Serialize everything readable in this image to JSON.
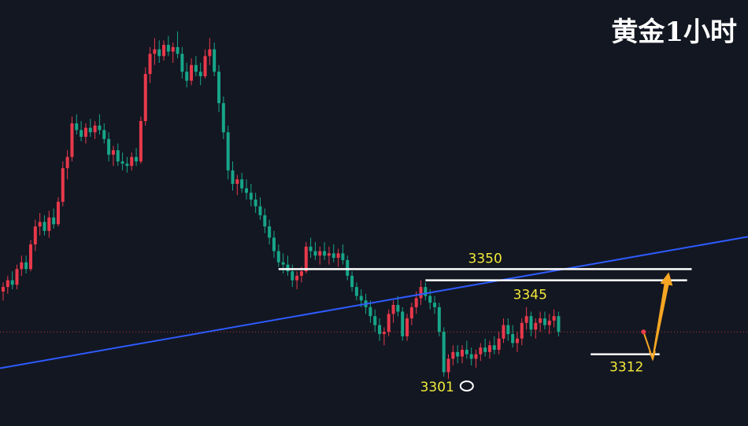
{
  "chart_data": {
    "type": "candlestick",
    "title": "黄金1小时",
    "instrument": "黄金",
    "timeframe": "1小时",
    "xlabel": "",
    "ylabel": "",
    "ylim": [
      3280,
      3470
    ],
    "grid": false,
    "colors": {
      "background": "#131722",
      "up": "#e8394b",
      "down": "#17a589",
      "trendline": "#2e5bff",
      "level_line": "#ffffff",
      "label": "#f2ea3a",
      "projection": "#f5a623",
      "current_price_line": "#c0392b"
    },
    "current_price": 3322,
    "candles": [
      {
        "o": 3340,
        "h": 3344,
        "l": 3336,
        "c": 3342
      },
      {
        "o": 3342,
        "h": 3347,
        "l": 3339,
        "c": 3345
      },
      {
        "o": 3345,
        "h": 3349,
        "l": 3341,
        "c": 3343
      },
      {
        "o": 3343,
        "h": 3352,
        "l": 3341,
        "c": 3350
      },
      {
        "o": 3350,
        "h": 3356,
        "l": 3347,
        "c": 3353
      },
      {
        "o": 3353,
        "h": 3356,
        "l": 3348,
        "c": 3350
      },
      {
        "o": 3350,
        "h": 3363,
        "l": 3349,
        "c": 3361
      },
      {
        "o": 3361,
        "h": 3372,
        "l": 3358,
        "c": 3369
      },
      {
        "o": 3369,
        "h": 3375,
        "l": 3365,
        "c": 3371
      },
      {
        "o": 3371,
        "h": 3374,
        "l": 3365,
        "c": 3367
      },
      {
        "o": 3367,
        "h": 3376,
        "l": 3364,
        "c": 3373
      },
      {
        "o": 3373,
        "h": 3377,
        "l": 3368,
        "c": 3370
      },
      {
        "o": 3370,
        "h": 3382,
        "l": 3369,
        "c": 3380
      },
      {
        "o": 3380,
        "h": 3398,
        "l": 3378,
        "c": 3395
      },
      {
        "o": 3395,
        "h": 3403,
        "l": 3390,
        "c": 3400
      },
      {
        "o": 3400,
        "h": 3418,
        "l": 3398,
        "c": 3415
      },
      {
        "o": 3415,
        "h": 3419,
        "l": 3410,
        "c": 3412
      },
      {
        "o": 3412,
        "h": 3416,
        "l": 3407,
        "c": 3409
      },
      {
        "o": 3409,
        "h": 3415,
        "l": 3406,
        "c": 3413
      },
      {
        "o": 3413,
        "h": 3417,
        "l": 3409,
        "c": 3411
      },
      {
        "o": 3411,
        "h": 3416,
        "l": 3408,
        "c": 3414
      },
      {
        "o": 3414,
        "h": 3419,
        "l": 3410,
        "c": 3412
      },
      {
        "o": 3412,
        "h": 3415,
        "l": 3406,
        "c": 3408
      },
      {
        "o": 3408,
        "h": 3411,
        "l": 3398,
        "c": 3401
      },
      {
        "o": 3401,
        "h": 3405,
        "l": 3396,
        "c": 3403
      },
      {
        "o": 3403,
        "h": 3406,
        "l": 3396,
        "c": 3398
      },
      {
        "o": 3398,
        "h": 3402,
        "l": 3394,
        "c": 3397
      },
      {
        "o": 3397,
        "h": 3400,
        "l": 3393,
        "c": 3396
      },
      {
        "o": 3396,
        "h": 3402,
        "l": 3394,
        "c": 3400
      },
      {
        "o": 3400,
        "h": 3404,
        "l": 3396,
        "c": 3398
      },
      {
        "o": 3398,
        "h": 3418,
        "l": 3397,
        "c": 3416
      },
      {
        "o": 3416,
        "h": 3440,
        "l": 3414,
        "c": 3437
      },
      {
        "o": 3437,
        "h": 3449,
        "l": 3433,
        "c": 3446
      },
      {
        "o": 3446,
        "h": 3453,
        "l": 3441,
        "c": 3448
      },
      {
        "o": 3448,
        "h": 3452,
        "l": 3442,
        "c": 3445
      },
      {
        "o": 3445,
        "h": 3452,
        "l": 3443,
        "c": 3450
      },
      {
        "o": 3450,
        "h": 3454,
        "l": 3445,
        "c": 3447
      },
      {
        "o": 3447,
        "h": 3451,
        "l": 3442,
        "c": 3449
      },
      {
        "o": 3449,
        "h": 3456,
        "l": 3444,
        "c": 3446
      },
      {
        "o": 3446,
        "h": 3449,
        "l": 3435,
        "c": 3438
      },
      {
        "o": 3438,
        "h": 3442,
        "l": 3431,
        "c": 3434
      },
      {
        "o": 3434,
        "h": 3444,
        "l": 3432,
        "c": 3441
      },
      {
        "o": 3441,
        "h": 3445,
        "l": 3436,
        "c": 3438
      },
      {
        "o": 3438,
        "h": 3442,
        "l": 3432,
        "c": 3436
      },
      {
        "o": 3436,
        "h": 3448,
        "l": 3435,
        "c": 3445
      },
      {
        "o": 3445,
        "h": 3453,
        "l": 3441,
        "c": 3448
      },
      {
        "o": 3448,
        "h": 3451,
        "l": 3436,
        "c": 3438
      },
      {
        "o": 3438,
        "h": 3441,
        "l": 3420,
        "c": 3424
      },
      {
        "o": 3424,
        "h": 3427,
        "l": 3408,
        "c": 3411
      },
      {
        "o": 3411,
        "h": 3414,
        "l": 3390,
        "c": 3394
      },
      {
        "o": 3394,
        "h": 3398,
        "l": 3385,
        "c": 3388
      },
      {
        "o": 3388,
        "h": 3392,
        "l": 3383,
        "c": 3390
      },
      {
        "o": 3390,
        "h": 3393,
        "l": 3384,
        "c": 3386
      },
      {
        "o": 3386,
        "h": 3390,
        "l": 3381,
        "c": 3384
      },
      {
        "o": 3384,
        "h": 3388,
        "l": 3378,
        "c": 3381
      },
      {
        "o": 3381,
        "h": 3384,
        "l": 3375,
        "c": 3378
      },
      {
        "o": 3378,
        "h": 3382,
        "l": 3372,
        "c": 3374
      },
      {
        "o": 3374,
        "h": 3377,
        "l": 3366,
        "c": 3369
      },
      {
        "o": 3369,
        "h": 3372,
        "l": 3361,
        "c": 3364
      },
      {
        "o": 3364,
        "h": 3367,
        "l": 3355,
        "c": 3358
      },
      {
        "o": 3358,
        "h": 3361,
        "l": 3351,
        "c": 3353
      },
      {
        "o": 3353,
        "h": 3357,
        "l": 3348,
        "c": 3352
      },
      {
        "o": 3352,
        "h": 3356,
        "l": 3347,
        "c": 3349
      },
      {
        "o": 3349,
        "h": 3352,
        "l": 3342,
        "c": 3345
      },
      {
        "o": 3345,
        "h": 3349,
        "l": 3341,
        "c": 3347
      },
      {
        "o": 3347,
        "h": 3351,
        "l": 3344,
        "c": 3349
      },
      {
        "o": 3349,
        "h": 3362,
        "l": 3348,
        "c": 3360
      },
      {
        "o": 3360,
        "h": 3364,
        "l": 3355,
        "c": 3358
      },
      {
        "o": 3358,
        "h": 3362,
        "l": 3354,
        "c": 3356
      },
      {
        "o": 3356,
        "h": 3360,
        "l": 3352,
        "c": 3358
      },
      {
        "o": 3358,
        "h": 3362,
        "l": 3354,
        "c": 3356
      },
      {
        "o": 3356,
        "h": 3360,
        "l": 3352,
        "c": 3357
      },
      {
        "o": 3357,
        "h": 3361,
        "l": 3353,
        "c": 3355
      },
      {
        "o": 3355,
        "h": 3359,
        "l": 3351,
        "c": 3357
      },
      {
        "o": 3357,
        "h": 3361,
        "l": 3352,
        "c": 3354
      },
      {
        "o": 3354,
        "h": 3356,
        "l": 3345,
        "c": 3347
      },
      {
        "o": 3347,
        "h": 3349,
        "l": 3340,
        "c": 3342
      },
      {
        "o": 3342,
        "h": 3344,
        "l": 3336,
        "c": 3338
      },
      {
        "o": 3338,
        "h": 3341,
        "l": 3333,
        "c": 3336
      },
      {
        "o": 3336,
        "h": 3339,
        "l": 3330,
        "c": 3333
      },
      {
        "o": 3333,
        "h": 3336,
        "l": 3326,
        "c": 3329
      },
      {
        "o": 3329,
        "h": 3332,
        "l": 3322,
        "c": 3325
      },
      {
        "o": 3325,
        "h": 3328,
        "l": 3318,
        "c": 3321
      },
      {
        "o": 3321,
        "h": 3324,
        "l": 3316,
        "c": 3322
      },
      {
        "o": 3322,
        "h": 3332,
        "l": 3320,
        "c": 3330
      },
      {
        "o": 3330,
        "h": 3336,
        "l": 3326,
        "c": 3334
      },
      {
        "o": 3334,
        "h": 3338,
        "l": 3329,
        "c": 3331
      },
      {
        "o": 3331,
        "h": 3333,
        "l": 3318,
        "c": 3320
      },
      {
        "o": 3320,
        "h": 3330,
        "l": 3318,
        "c": 3328
      },
      {
        "o": 3328,
        "h": 3335,
        "l": 3325,
        "c": 3333
      },
      {
        "o": 3333,
        "h": 3340,
        "l": 3330,
        "c": 3337
      },
      {
        "o": 3337,
        "h": 3345,
        "l": 3334,
        "c": 3342
      },
      {
        "o": 3342,
        "h": 3344,
        "l": 3336,
        "c": 3338
      },
      {
        "o": 3338,
        "h": 3341,
        "l": 3332,
        "c": 3335
      },
      {
        "o": 3335,
        "h": 3338,
        "l": 3330,
        "c": 3333
      },
      {
        "o": 3333,
        "h": 3335,
        "l": 3320,
        "c": 3322
      },
      {
        "o": 3322,
        "h": 3324,
        "l": 3302,
        "c": 3304
      },
      {
        "o": 3304,
        "h": 3312,
        "l": 3301,
        "c": 3310
      },
      {
        "o": 3310,
        "h": 3316,
        "l": 3307,
        "c": 3313
      },
      {
        "o": 3313,
        "h": 3316,
        "l": 3308,
        "c": 3311
      },
      {
        "o": 3311,
        "h": 3316,
        "l": 3308,
        "c": 3314
      },
      {
        "o": 3314,
        "h": 3318,
        "l": 3310,
        "c": 3312
      },
      {
        "o": 3312,
        "h": 3315,
        "l": 3307,
        "c": 3310
      },
      {
        "o": 3310,
        "h": 3314,
        "l": 3306,
        "c": 3312
      },
      {
        "o": 3312,
        "h": 3317,
        "l": 3309,
        "c": 3315
      },
      {
        "o": 3315,
        "h": 3319,
        "l": 3311,
        "c": 3313
      },
      {
        "o": 3313,
        "h": 3318,
        "l": 3310,
        "c": 3316
      },
      {
        "o": 3316,
        "h": 3320,
        "l": 3312,
        "c": 3314
      },
      {
        "o": 3314,
        "h": 3322,
        "l": 3312,
        "c": 3319
      },
      {
        "o": 3319,
        "h": 3328,
        "l": 3317,
        "c": 3325
      },
      {
        "o": 3325,
        "h": 3328,
        "l": 3318,
        "c": 3321
      },
      {
        "o": 3321,
        "h": 3325,
        "l": 3315,
        "c": 3317
      },
      {
        "o": 3317,
        "h": 3322,
        "l": 3313,
        "c": 3319
      },
      {
        "o": 3319,
        "h": 3328,
        "l": 3316,
        "c": 3326
      },
      {
        "o": 3326,
        "h": 3333,
        "l": 3323,
        "c": 3329
      },
      {
        "o": 3329,
        "h": 3331,
        "l": 3320,
        "c": 3323
      },
      {
        "o": 3323,
        "h": 3328,
        "l": 3319,
        "c": 3326
      },
      {
        "o": 3326,
        "h": 3331,
        "l": 3322,
        "c": 3328
      },
      {
        "o": 3328,
        "h": 3331,
        "l": 3323,
        "c": 3325
      },
      {
        "o": 3325,
        "h": 3330,
        "l": 3321,
        "c": 3327
      },
      {
        "o": 3327,
        "h": 3332,
        "l": 3324,
        "c": 3329
      },
      {
        "o": 3329,
        "h": 3331,
        "l": 3320,
        "c": 3322
      }
    ],
    "trendline": {
      "x": [
        0,
        150
      ],
      "y": [
        3306,
        3360
      ]
    },
    "levels": [
      {
        "name": "resistance",
        "label": "3350",
        "value": 3350,
        "x": [
          60,
          150
        ]
      },
      {
        "name": "resistance",
        "label": "3345",
        "value": 3345,
        "x": [
          92,
          149
        ]
      },
      {
        "name": "support",
        "label": "3312",
        "value": 3312,
        "x": [
          128,
          143
        ]
      }
    ],
    "annotations": {
      "low_label": "3301",
      "low_value": 3301,
      "low_index": 101,
      "projection": [
        {
          "x": 139.5,
          "y": 3322
        },
        {
          "x": 141.5,
          "y": 3312
        },
        {
          "x": 145,
          "y": 3350
        }
      ]
    }
  }
}
